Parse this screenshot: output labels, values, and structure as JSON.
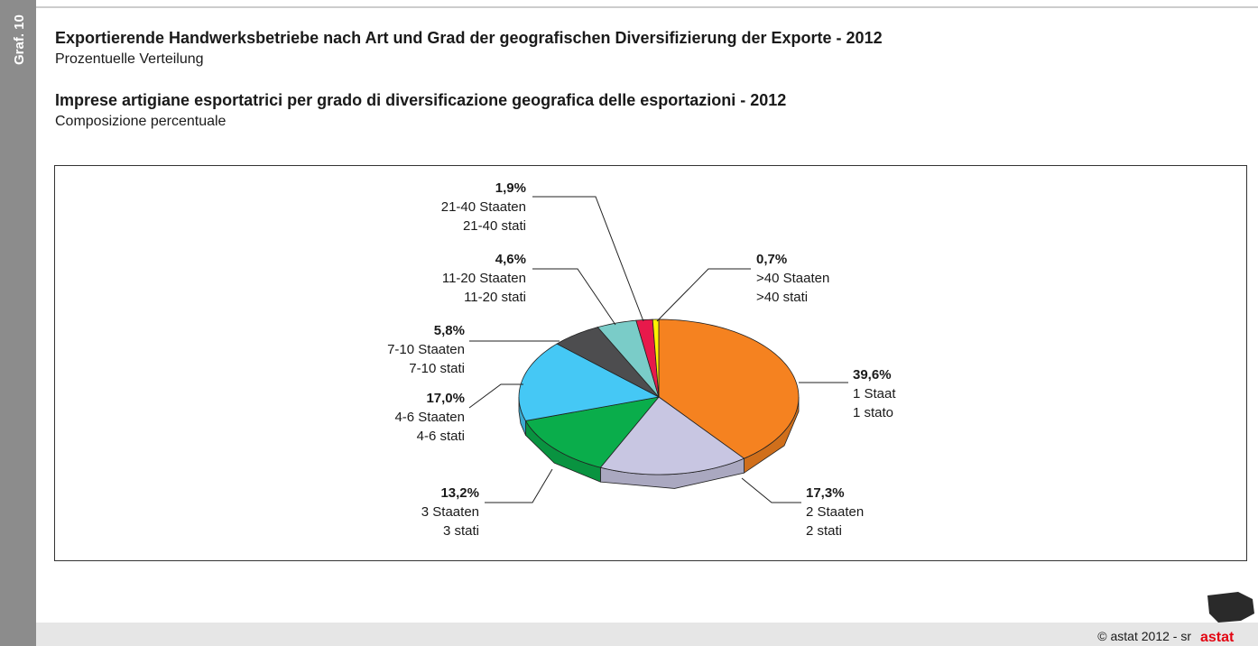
{
  "page": {
    "side_label": "Graf. 10",
    "footer": "© astat 2012 - sr",
    "logo": "astat"
  },
  "chart_data": {
    "type": "pie",
    "title": "Exportierende Handwerksbetriebe nach Art und Grad der geografischen Diversifizierung der Exporte - 2012",
    "subtitle": "Prozentuelle Verteilung",
    "title_it": "Imprese artigiane esportatrici per grado di diversificazione geografica delle esportazioni - 2012",
    "subtitle_it": "Composizione percentuale",
    "categories": [
      "1 Staat",
      "2 Staaten",
      "3 Staaten",
      "4-6 Staaten",
      "7-10 Staaten",
      "11-20 Staaten",
      "21-40 Staaten",
      ">40 Staaten"
    ],
    "categories_it": [
      "1 stato",
      "2 stati",
      "3 stati",
      "4-6 stati",
      "7-10 stati",
      "11-20 stati",
      "21-40 stati",
      ">40 stati"
    ],
    "values": [
      39.6,
      17.3,
      13.2,
      17.0,
      5.8,
      4.6,
      1.9,
      0.7
    ],
    "value_labels": [
      "39,6%",
      "17,3%",
      "13,2%",
      "17,0%",
      "5,8%",
      "4,6%",
      "1,9%",
      "0,7%"
    ],
    "colors": [
      "#f58220",
      "#c8c6e2",
      "#0aad4b",
      "#45c8f5",
      "#4d4d4f",
      "#7accc8",
      "#e8194b",
      "#fff200"
    ]
  }
}
